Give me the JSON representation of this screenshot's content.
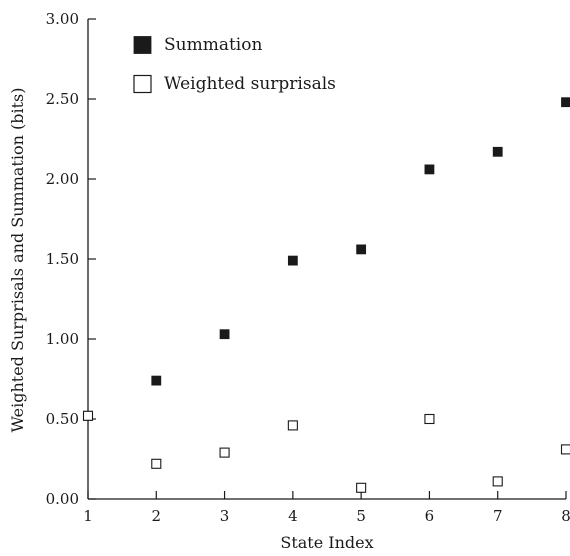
{
  "chart_data": {
    "type": "scatter",
    "title": "",
    "xlabel": "State Index",
    "ylabel": "Weighted Surprisals and Summation (bits)",
    "xlim": [
      1,
      8
    ],
    "ylim": [
      0,
      3
    ],
    "xticks": [
      "1",
      "2",
      "3",
      "4",
      "5",
      "6",
      "7",
      "8"
    ],
    "yticks": [
      "0.00",
      "0.50",
      "1.00",
      "1.50",
      "2.00",
      "2.50",
      "3.00"
    ],
    "ytick_values": [
      0,
      0.5,
      1,
      1.5,
      2,
      2.5,
      3
    ],
    "grid": false,
    "legend_position": "top-left",
    "series": [
      {
        "name": "Summation",
        "marker": "filled-square",
        "color": "#1a1a1a",
        "x": [
          1,
          2,
          3,
          4,
          5,
          6,
          7,
          8
        ],
        "y": [
          0.52,
          0.74,
          1.03,
          1.49,
          1.56,
          2.06,
          2.17,
          2.48
        ]
      },
      {
        "name": "Weighted surprisals",
        "marker": "open-square",
        "color": "#1a1a1a",
        "x": [
          1,
          2,
          3,
          4,
          5,
          6,
          7,
          8
        ],
        "y": [
          0.52,
          0.22,
          0.29,
          0.46,
          0.07,
          0.5,
          0.11,
          0.31
        ]
      }
    ]
  }
}
